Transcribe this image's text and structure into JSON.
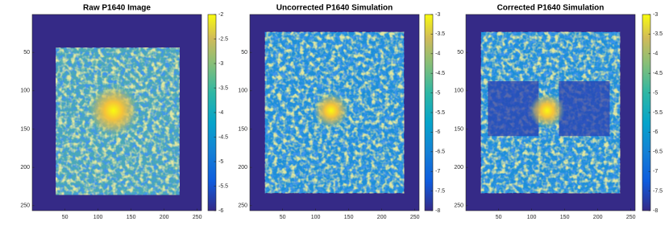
{
  "chart_data": [
    {
      "type": "image",
      "title": "Raw P1640 Image",
      "xlim": [
        0.5,
        256.5
      ],
      "ylim": [
        0.5,
        256.5
      ],
      "xticks": [
        50,
        100,
        150,
        200,
        250
      ],
      "yticks": [
        50,
        100,
        150,
        200,
        250
      ],
      "clim": [
        -6,
        -2
      ],
      "cticks": [
        -2,
        -2.5,
        -3,
        -3.5,
        -4,
        -4.5,
        -5,
        -5.5,
        -6
      ]
    },
    {
      "type": "image",
      "title": "Uncorrected P1640 Simulation",
      "xlim": [
        0.5,
        256.5
      ],
      "ylim": [
        0.5,
        256.5
      ],
      "xticks": [
        50,
        100,
        150,
        200,
        250
      ],
      "yticks": [
        50,
        100,
        150,
        200,
        250
      ],
      "clim": [
        -8,
        -3
      ],
      "cticks": [
        -3,
        -3.5,
        -4,
        -4.5,
        -5,
        -5.5,
        -6,
        -6.5,
        -7,
        -7.5,
        -8
      ]
    },
    {
      "type": "image",
      "title": "Corrected P1640 Simulation",
      "xlim": [
        0.5,
        256.5
      ],
      "ylim": [
        0.5,
        256.5
      ],
      "xticks": [
        50,
        100,
        150,
        200,
        250
      ],
      "yticks": [
        50,
        100,
        150,
        200,
        250
      ],
      "clim": [
        -8,
        -3
      ],
      "cticks": [
        -3,
        -3.5,
        -4,
        -4.5,
        -5,
        -5.5,
        -6,
        -6.5,
        -7,
        -7.5,
        -8
      ]
    }
  ]
}
